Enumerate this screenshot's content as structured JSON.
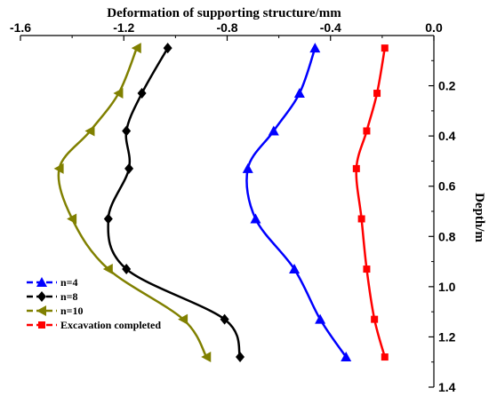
{
  "chart_data": {
    "type": "line",
    "xlabel": "Deformation of supporting structure/mm",
    "ylabel": "Depth/m",
    "xlim": [
      -1.6,
      0.0
    ],
    "ylim": [
      0.0,
      1.4
    ],
    "x_ticks": [
      -1.6,
      -1.2,
      -0.8,
      -0.4,
      0.0
    ],
    "x_tick_labels": [
      "-1.6",
      "-1.2",
      "-0.8",
      "-0.4",
      "0.0"
    ],
    "y_ticks": [
      0.2,
      0.4,
      0.6,
      0.8,
      1.0,
      1.2,
      1.4
    ],
    "y_tick_labels": [
      "0.2",
      "0.4",
      "0.6",
      "0.8",
      "1.0",
      "1.2",
      "1.4"
    ],
    "x_axis_position": "top",
    "y_axis_position": "right",
    "y_inverted": true,
    "grid": false,
    "legend_position": "bottom-left",
    "series": [
      {
        "name": "n=4",
        "color": "#0000ff",
        "marker": "triangle-up",
        "points": [
          {
            "x": -0.46,
            "y": 0.05
          },
          {
            "x": -0.52,
            "y": 0.23
          },
          {
            "x": -0.62,
            "y": 0.38
          },
          {
            "x": -0.72,
            "y": 0.53
          },
          {
            "x": -0.69,
            "y": 0.73
          },
          {
            "x": -0.54,
            "y": 0.93
          },
          {
            "x": -0.44,
            "y": 1.13
          },
          {
            "x": -0.34,
            "y": 1.28
          }
        ]
      },
      {
        "name": "n=8",
        "color": "#000000",
        "marker": "diamond",
        "points": [
          {
            "x": -1.03,
            "y": 0.05
          },
          {
            "x": -1.13,
            "y": 0.23
          },
          {
            "x": -1.19,
            "y": 0.38
          },
          {
            "x": -1.18,
            "y": 0.53
          },
          {
            "x": -1.26,
            "y": 0.73
          },
          {
            "x": -1.19,
            "y": 0.93
          },
          {
            "x": -0.81,
            "y": 1.13
          },
          {
            "x": -0.75,
            "y": 1.28
          }
        ]
      },
      {
        "name": "n=10",
        "color": "#808000",
        "marker": "triangle-left",
        "points": [
          {
            "x": -1.15,
            "y": 0.05
          },
          {
            "x": -1.22,
            "y": 0.23
          },
          {
            "x": -1.33,
            "y": 0.38
          },
          {
            "x": -1.45,
            "y": 0.53
          },
          {
            "x": -1.4,
            "y": 0.73
          },
          {
            "x": -1.26,
            "y": 0.93
          },
          {
            "x": -0.97,
            "y": 1.13
          },
          {
            "x": -0.88,
            "y": 1.28
          }
        ]
      },
      {
        "name": "Excavation completed",
        "color": "#ff0000",
        "marker": "square",
        "points": [
          {
            "x": -0.19,
            "y": 0.05
          },
          {
            "x": -0.22,
            "y": 0.23
          },
          {
            "x": -0.26,
            "y": 0.38
          },
          {
            "x": -0.3,
            "y": 0.53
          },
          {
            "x": -0.28,
            "y": 0.73
          },
          {
            "x": -0.26,
            "y": 0.93
          },
          {
            "x": -0.23,
            "y": 1.13
          },
          {
            "x": -0.19,
            "y": 1.28
          }
        ]
      }
    ]
  }
}
